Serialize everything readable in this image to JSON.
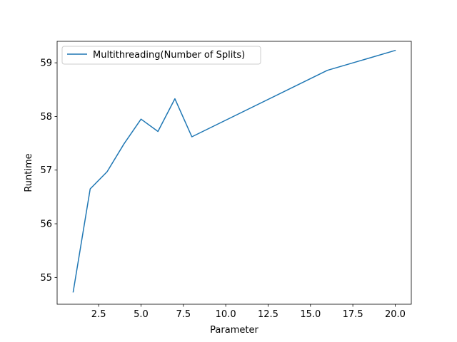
{
  "chart_data": {
    "type": "line",
    "title": "",
    "xlabel": "Parameter",
    "ylabel": "Runtime",
    "xlim": [
      0.05,
      20.95
    ],
    "ylim": [
      54.5,
      59.4
    ],
    "xticks": [
      2.5,
      5.0,
      7.5,
      10.0,
      12.5,
      15.0,
      17.5,
      20.0
    ],
    "xtick_labels": [
      "2.5",
      "5.0",
      "7.5",
      "10.0",
      "12.5",
      "15.0",
      "17.5",
      "20.0"
    ],
    "yticks": [
      55,
      56,
      57,
      58,
      59
    ],
    "ytick_labels": [
      "55",
      "56",
      "57",
      "58",
      "59"
    ],
    "grid": false,
    "legend_position": "top-left",
    "series": [
      {
        "name": "Multithreading(Number of Splits)",
        "color": "#1f77b4",
        "x": [
          1,
          2,
          3,
          4,
          5,
          6,
          7,
          8,
          16,
          20
        ],
        "y": [
          54.73,
          56.65,
          56.97,
          57.49,
          57.95,
          57.72,
          58.33,
          57.62,
          58.86,
          59.23
        ]
      }
    ]
  }
}
